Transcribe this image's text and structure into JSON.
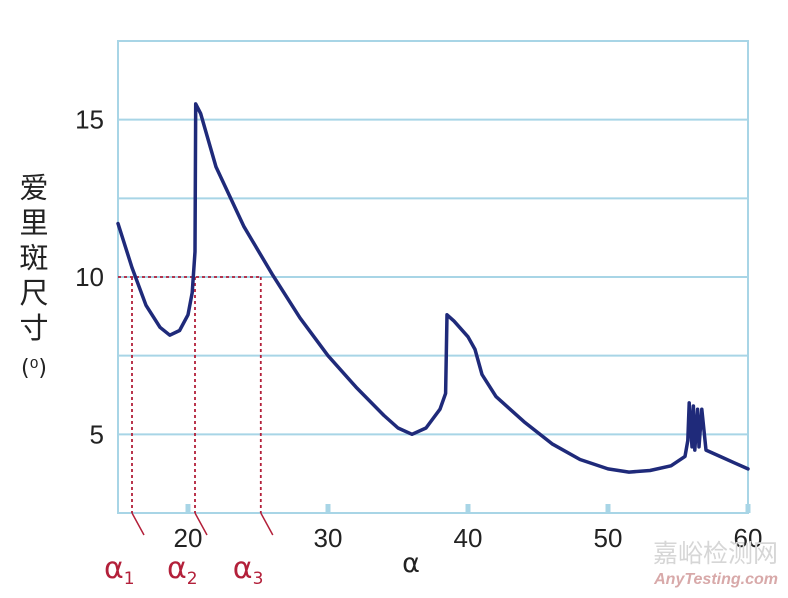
{
  "chart_data": {
    "type": "line",
    "xlabel": "α",
    "ylabel_chars": [
      "爱",
      "里",
      "斑",
      "尺",
      "寸"
    ],
    "ylabel_unit": "(⁰)",
    "xlim": [
      15,
      60
    ],
    "ylim": [
      2.5,
      17.5
    ],
    "x_ticks": [
      "20",
      "30",
      "40",
      "50",
      "60"
    ],
    "y_ticks": [
      "5",
      "10",
      "15"
    ],
    "grid": "horizontal",
    "colors": {
      "line": "#1f2a7a",
      "frame": "#a8d5e6",
      "marker": "#b3203a"
    },
    "series": [
      {
        "x": [
          15.0,
          16.0,
          17.0,
          18.0,
          18.7,
          19.4,
          20.0,
          20.3,
          20.5,
          20.55,
          20.9,
          22.0,
          24.0,
          26.0,
          28.0,
          30.0,
          32.0,
          34.0,
          35.0,
          36.0,
          37.0,
          38.0,
          38.4,
          38.5,
          39.0,
          40.0,
          40.5,
          41.0,
          42.0,
          44.0,
          46.0,
          48.0,
          50.0,
          51.5,
          53.0,
          54.5,
          55.5,
          55.7,
          55.8,
          56.0,
          56.1,
          56.2,
          56.4,
          56.5,
          56.7,
          57.0,
          58.0,
          59.0,
          60.0
        ],
        "y": [
          11.7,
          10.3,
          9.1,
          8.4,
          8.15,
          8.3,
          8.8,
          9.5,
          10.8,
          15.5,
          15.2,
          13.5,
          11.6,
          10.1,
          8.7,
          7.5,
          6.5,
          5.6,
          5.2,
          5.0,
          5.2,
          5.8,
          6.3,
          8.8,
          8.6,
          8.1,
          7.7,
          6.9,
          6.2,
          5.4,
          4.7,
          4.2,
          3.9,
          3.8,
          3.85,
          4.0,
          4.3,
          4.8,
          6.0,
          4.6,
          5.9,
          4.5,
          5.8,
          4.6,
          5.8,
          4.5,
          4.3,
          4.1,
          3.9
        ]
      }
    ],
    "reference": {
      "y": 10,
      "x_marks": [
        16.0,
        20.5,
        25.2
      ],
      "mark_labels": [
        {
          "symbol": "α",
          "sub": "1"
        },
        {
          "symbol": "α",
          "sub": "2"
        },
        {
          "symbol": "α",
          "sub": "3"
        }
      ]
    }
  },
  "watermark": {
    "cn": "嘉峪检测网",
    "en": "AnyTesting.com"
  }
}
